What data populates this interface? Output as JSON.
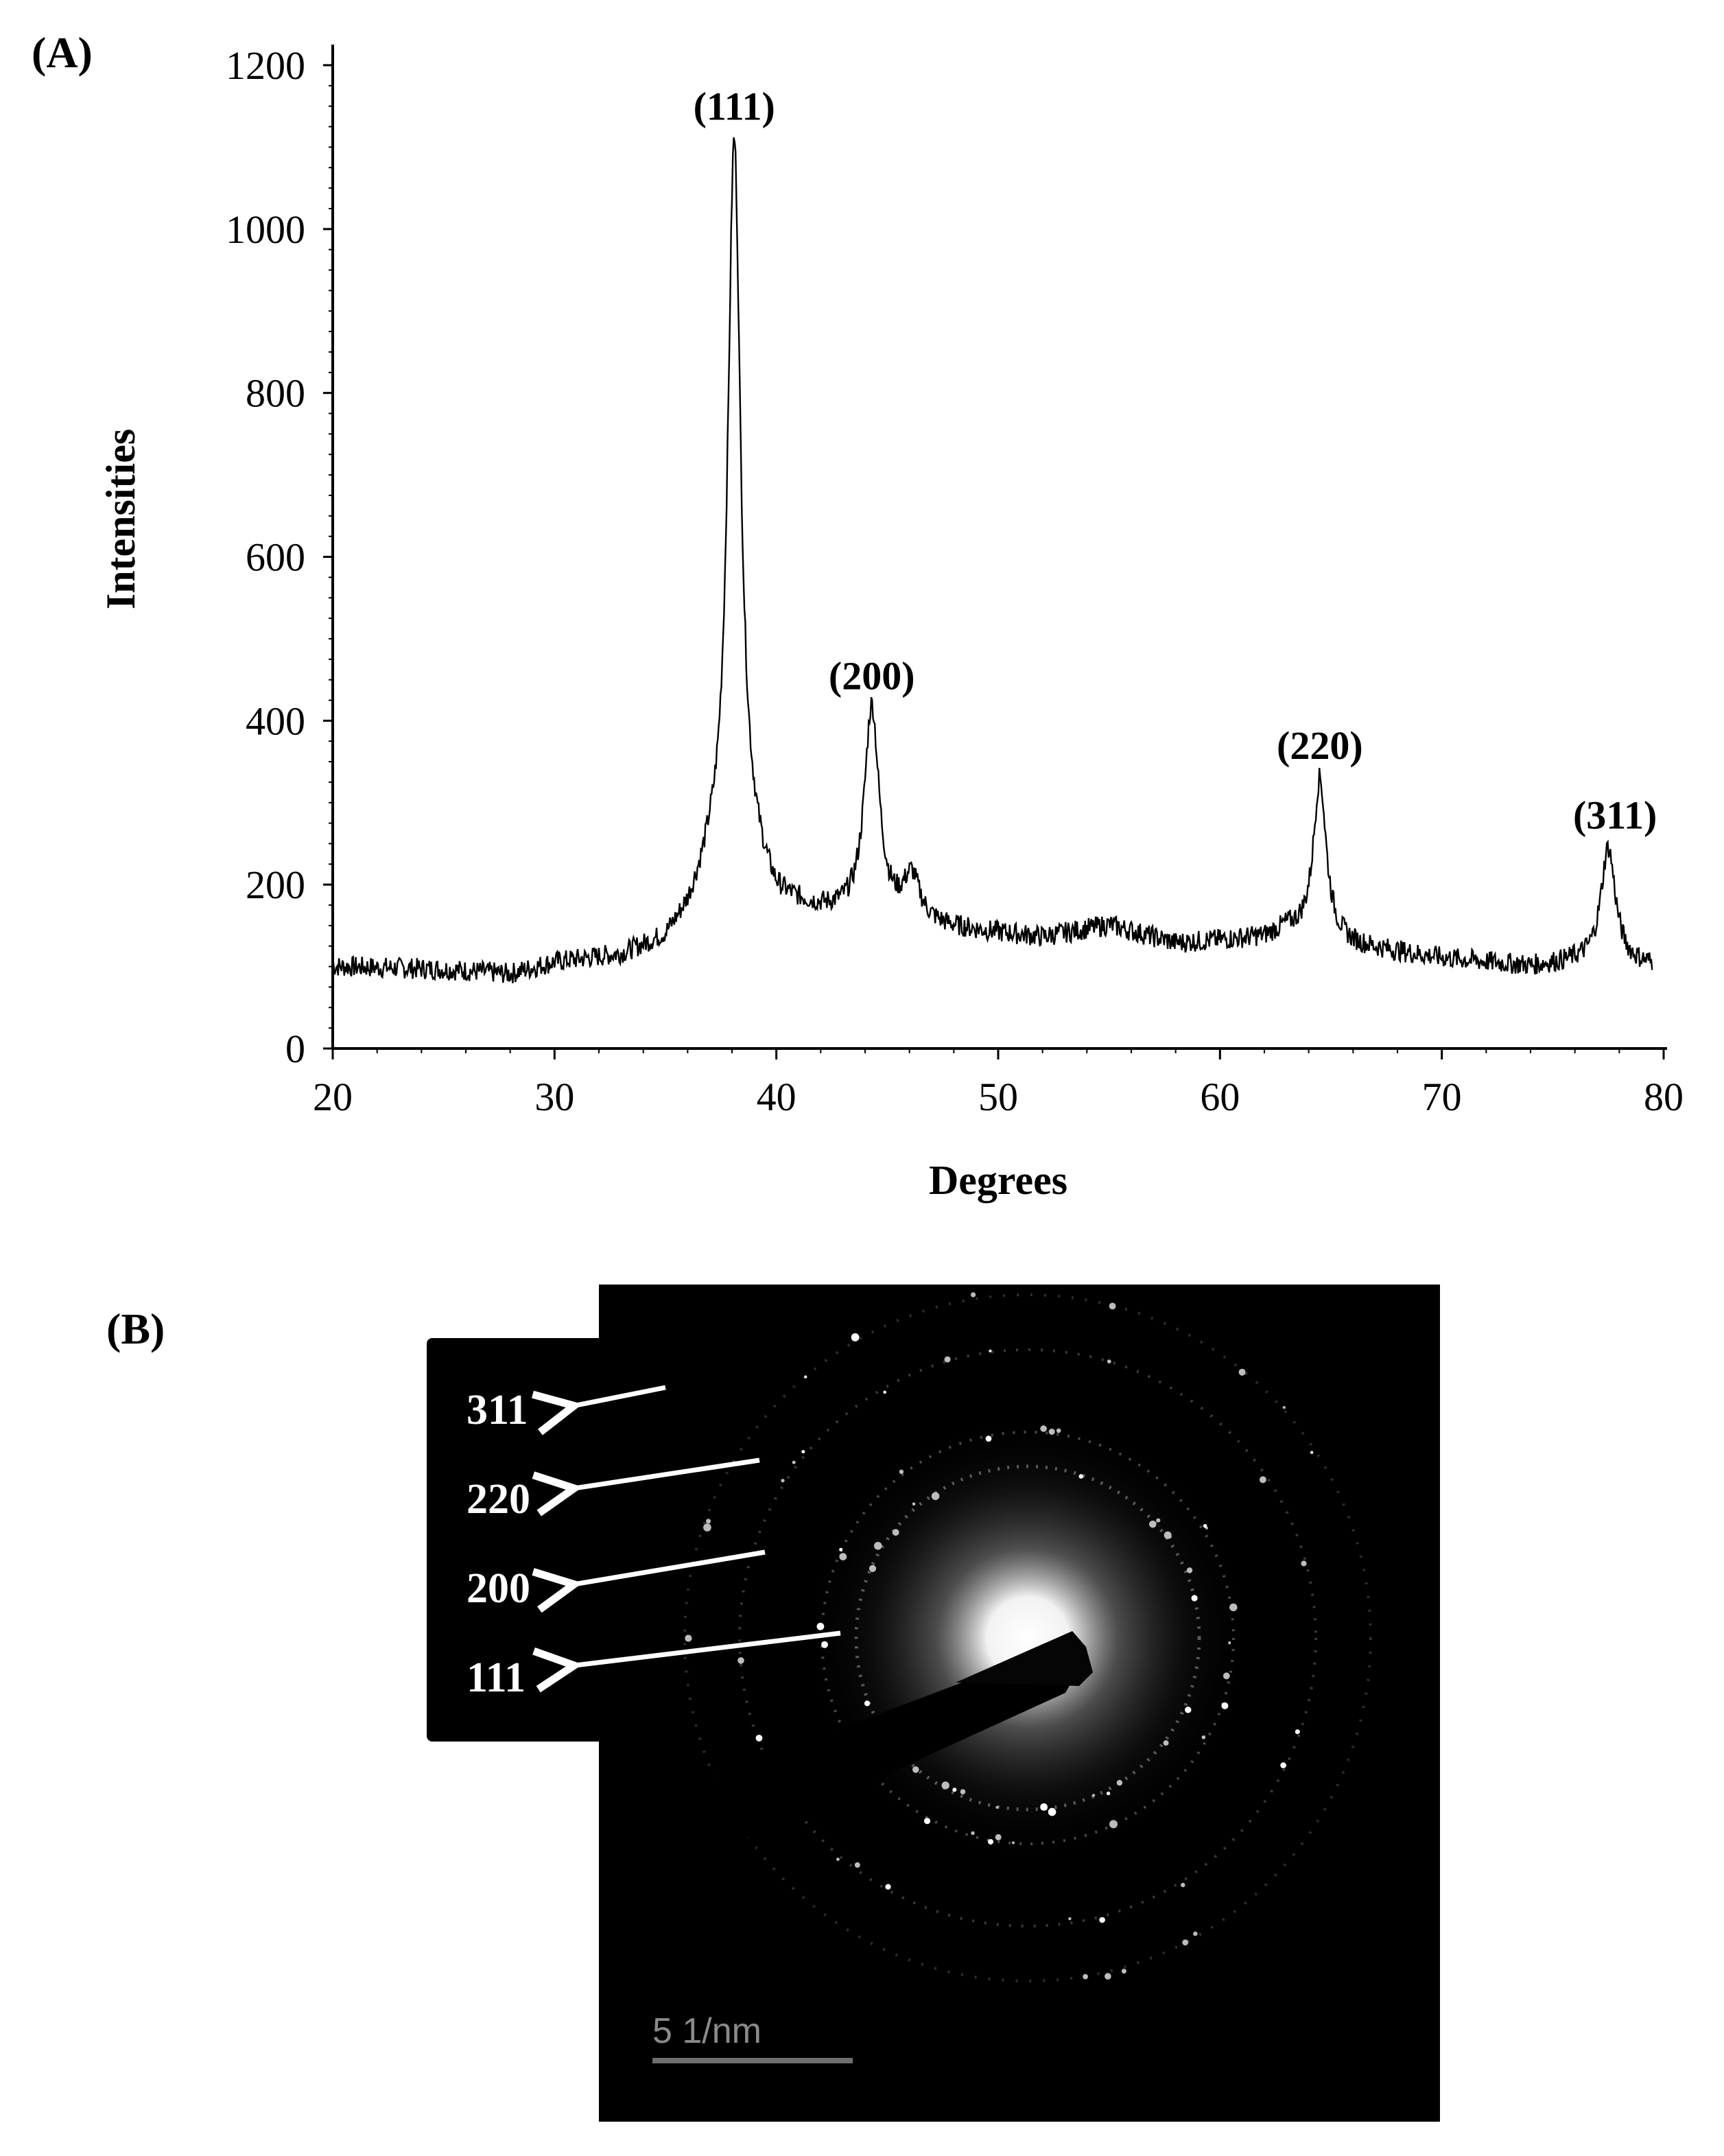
{
  "panels": {
    "a_label": "(A)",
    "b_label": "(B)"
  },
  "chart_data": {
    "type": "line",
    "title": "",
    "xlabel": "Degrees",
    "ylabel": "Intensities",
    "xlim": [
      20,
      80
    ],
    "ylim": [
      0,
      1200
    ],
    "xticks": [
      20,
      30,
      40,
      50,
      60,
      70,
      80
    ],
    "yticks": [
      0,
      200,
      400,
      600,
      800,
      1000,
      1200
    ],
    "grid": false,
    "baseline": [
      [
        20,
        100
      ],
      [
        25,
        96
      ],
      [
        28,
        90
      ],
      [
        30,
        104
      ],
      [
        33,
        112
      ],
      [
        35,
        130
      ],
      [
        36,
        160
      ],
      [
        37,
        210
      ],
      [
        39,
        210
      ],
      [
        40,
        175
      ],
      [
        42,
        165
      ],
      [
        48,
        145
      ],
      [
        52,
        135
      ],
      [
        55,
        150
      ],
      [
        58,
        128
      ],
      [
        62,
        135
      ],
      [
        63,
        145
      ],
      [
        66,
        125
      ],
      [
        70,
        110
      ],
      [
        74,
        100
      ],
      [
        76,
        105
      ],
      [
        80,
        100
      ]
    ],
    "peaks": [
      {
        "label": "(111)",
        "x": 38.1,
        "y": 1110,
        "fwhm": 0.7
      },
      {
        "label": "(200)",
        "x": 44.3,
        "y": 415,
        "fwhm": 0.8
      },
      {
        "label": "",
        "x": 46.1,
        "y": 205,
        "fwhm": 0.9
      },
      {
        "label": "(220)",
        "x": 64.5,
        "y": 330,
        "fwhm": 0.7
      },
      {
        "label": "(311)",
        "x": 77.5,
        "y": 245,
        "fwhm": 0.8
      }
    ]
  },
  "saed": {
    "ring_labels": [
      "311",
      "220",
      "200",
      "111"
    ],
    "scale_bar": "5 1/nm"
  }
}
